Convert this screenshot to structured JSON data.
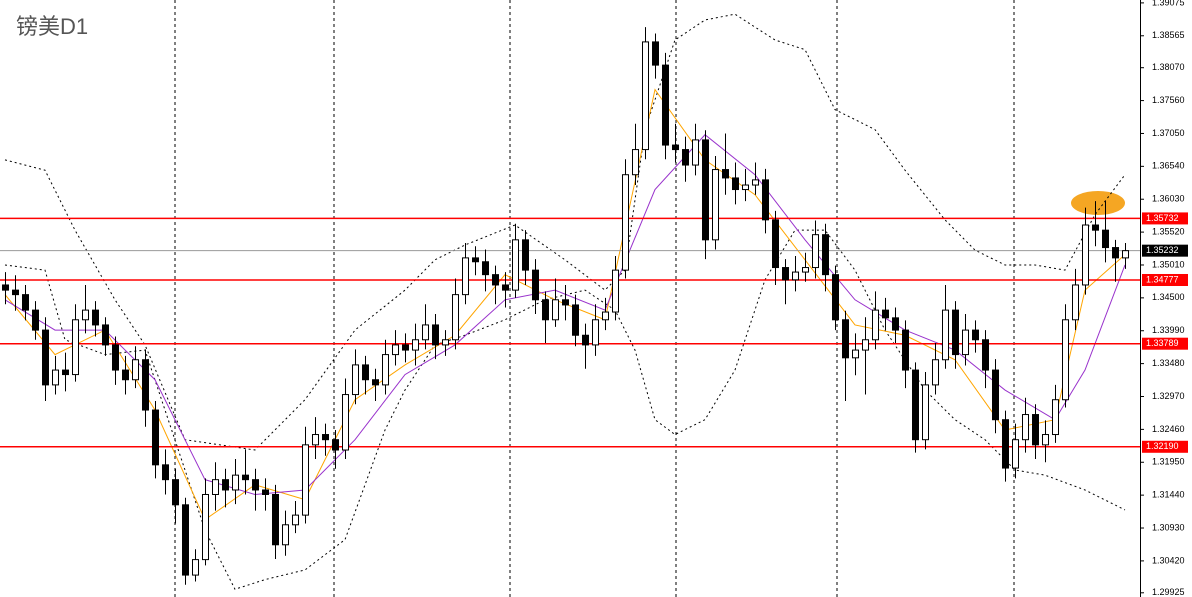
{
  "chart_data": {
    "type": "candlestick",
    "title": "镑美D1",
    "ohlc": [
      [
        1.347,
        1.349,
        1.344,
        1.3462
      ],
      [
        1.3462,
        1.3485,
        1.343,
        1.3455
      ],
      [
        1.3455,
        1.347,
        1.3415,
        1.3431
      ],
      [
        1.3431,
        1.3445,
        1.3385,
        1.34
      ],
      [
        1.34,
        1.342,
        1.329,
        1.3315
      ],
      [
        1.3315,
        1.336,
        1.33,
        1.3338
      ],
      [
        1.3338,
        1.3365,
        1.3305,
        1.3331
      ],
      [
        1.3331,
        1.344,
        1.332,
        1.3416
      ],
      [
        1.3416,
        1.347,
        1.3395,
        1.3431
      ],
      [
        1.3431,
        1.3445,
        1.339,
        1.3408
      ],
      [
        1.3408,
        1.342,
        1.336,
        1.3377
      ],
      [
        1.3377,
        1.339,
        1.3315,
        1.3338
      ],
      [
        1.3338,
        1.336,
        1.33,
        1.3323
      ],
      [
        1.3323,
        1.3375,
        1.331,
        1.3354
      ],
      [
        1.3354,
        1.337,
        1.325,
        1.3276
      ],
      [
        1.3276,
        1.329,
        1.317,
        1.3191
      ],
      [
        1.3191,
        1.3215,
        1.3145,
        1.3168
      ],
      [
        1.3168,
        1.3185,
        1.31,
        1.3129
      ],
      [
        1.3129,
        1.314,
        1.3005,
        1.302
      ],
      [
        1.302,
        1.306,
        1.301,
        1.3044
      ],
      [
        1.3044,
        1.317,
        1.3035,
        1.3145
      ],
      [
        1.3145,
        1.3195,
        1.312,
        1.3168
      ],
      [
        1.3168,
        1.3185,
        1.3125,
        1.3152
      ],
      [
        1.3152,
        1.32,
        1.313,
        1.3175
      ],
      [
        1.3175,
        1.3215,
        1.3145,
        1.3168
      ],
      [
        1.3168,
        1.3185,
        1.312,
        1.3152
      ],
      [
        1.3152,
        1.317,
        1.312,
        1.3145
      ],
      [
        1.3145,
        1.316,
        1.3045,
        1.3067
      ],
      [
        1.3067,
        1.312,
        1.305,
        1.3098
      ],
      [
        1.3098,
        1.3135,
        1.3085,
        1.3113
      ],
      [
        1.3113,
        1.325,
        1.31,
        1.3222
      ],
      [
        1.3222,
        1.3265,
        1.32,
        1.3238
      ],
      [
        1.3238,
        1.3255,
        1.3205,
        1.323
      ],
      [
        1.323,
        1.3245,
        1.3185,
        1.3214
      ],
      [
        1.3214,
        1.3325,
        1.32,
        1.33
      ],
      [
        1.33,
        1.337,
        1.3285,
        1.3346
      ],
      [
        1.3346,
        1.336,
        1.33,
        1.3323
      ],
      [
        1.3323,
        1.334,
        1.329,
        1.3315
      ],
      [
        1.3315,
        1.3385,
        1.33,
        1.3362
      ],
      [
        1.3362,
        1.34,
        1.3345,
        1.3377
      ],
      [
        1.3377,
        1.3395,
        1.335,
        1.3369
      ],
      [
        1.3369,
        1.341,
        1.3345,
        1.3385
      ],
      [
        1.3385,
        1.344,
        1.337,
        1.3408
      ],
      [
        1.3408,
        1.3425,
        1.3355,
        1.3377
      ],
      [
        1.3377,
        1.34,
        1.336,
        1.3385
      ],
      [
        1.3385,
        1.348,
        1.337,
        1.3455
      ],
      [
        1.3455,
        1.3535,
        1.344,
        1.3512
      ],
      [
        1.3512,
        1.353,
        1.3485,
        1.3506
      ],
      [
        1.3506,
        1.3525,
        1.346,
        1.3486
      ],
      [
        1.3486,
        1.35,
        1.344,
        1.347
      ],
      [
        1.347,
        1.349,
        1.3435,
        1.3462
      ],
      [
        1.3462,
        1.3565,
        1.345,
        1.354
      ],
      [
        1.354,
        1.3555,
        1.347,
        1.3493
      ],
      [
        1.3493,
        1.351,
        1.3425,
        1.3447
      ],
      [
        1.3447,
        1.346,
        1.338,
        1.3416
      ],
      [
        1.3416,
        1.348,
        1.3405,
        1.3447
      ],
      [
        1.3447,
        1.347,
        1.3415,
        1.3439
      ],
      [
        1.3439,
        1.3455,
        1.3375,
        1.3392
      ],
      [
        1.3392,
        1.341,
        1.334,
        1.3377
      ],
      [
        1.3377,
        1.344,
        1.336,
        1.3416
      ],
      [
        1.3416,
        1.345,
        1.34,
        1.3428
      ],
      [
        1.3428,
        1.3515,
        1.3415,
        1.3493
      ],
      [
        1.3493,
        1.3665,
        1.348,
        1.3641
      ],
      [
        1.3641,
        1.372,
        1.3625,
        1.368
      ],
      [
        1.368,
        1.387,
        1.3665,
        1.3847
      ],
      [
        1.3847,
        1.386,
        1.379,
        1.3811
      ],
      [
        1.3811,
        1.383,
        1.3665,
        1.3687
      ],
      [
        1.3687,
        1.372,
        1.366,
        1.368
      ],
      [
        1.368,
        1.37,
        1.363,
        1.3656
      ],
      [
        1.3656,
        1.372,
        1.364,
        1.3695
      ],
      [
        1.3695,
        1.371,
        1.351,
        1.354
      ],
      [
        1.354,
        1.367,
        1.3525,
        1.3649
      ],
      [
        1.3649,
        1.3705,
        1.361,
        1.3636
      ],
      [
        1.3636,
        1.366,
        1.3595,
        1.3618
      ],
      [
        1.3618,
        1.365,
        1.36,
        1.3625
      ],
      [
        1.3625,
        1.366,
        1.361,
        1.3633
      ],
      [
        1.3633,
        1.365,
        1.355,
        1.3571
      ],
      [
        1.3571,
        1.3585,
        1.347,
        1.3497
      ],
      [
        1.3497,
        1.351,
        1.344,
        1.3478
      ],
      [
        1.3478,
        1.3515,
        1.346,
        1.349
      ],
      [
        1.349,
        1.352,
        1.3475,
        1.3497
      ],
      [
        1.3497,
        1.357,
        1.348,
        1.3548
      ],
      [
        1.3548,
        1.3565,
        1.346,
        1.3486
      ],
      [
        1.3486,
        1.35,
        1.34,
        1.3416
      ],
      [
        1.3416,
        1.343,
        1.329,
        1.3357
      ],
      [
        1.3357,
        1.3395,
        1.333,
        1.3369
      ],
      [
        1.3369,
        1.342,
        1.33,
        1.3385
      ],
      [
        1.3385,
        1.346,
        1.337,
        1.3431
      ],
      [
        1.3431,
        1.345,
        1.34,
        1.3419
      ],
      [
        1.3419,
        1.3435,
        1.338,
        1.34
      ],
      [
        1.34,
        1.3415,
        1.331,
        1.3338
      ],
      [
        1.3338,
        1.335,
        1.321,
        1.323
      ],
      [
        1.323,
        1.3335,
        1.3215,
        1.3315
      ],
      [
        1.3315,
        1.338,
        1.33,
        1.3354
      ],
      [
        1.3354,
        1.347,
        1.334,
        1.3431
      ],
      [
        1.3431,
        1.3445,
        1.334,
        1.3362
      ],
      [
        1.3362,
        1.3425,
        1.3345,
        1.34
      ],
      [
        1.34,
        1.3415,
        1.3365,
        1.3385
      ],
      [
        1.3385,
        1.34,
        1.331,
        1.3338
      ],
      [
        1.3338,
        1.3355,
        1.324,
        1.3261
      ],
      [
        1.3261,
        1.3275,
        1.3165,
        1.3186
      ],
      [
        1.3186,
        1.3255,
        1.317,
        1.323
      ],
      [
        1.323,
        1.3295,
        1.321,
        1.3269
      ],
      [
        1.3269,
        1.3285,
        1.32,
        1.3222
      ],
      [
        1.3222,
        1.326,
        1.3195,
        1.3238
      ],
      [
        1.3238,
        1.3315,
        1.3225,
        1.3292
      ],
      [
        1.3292,
        1.344,
        1.328,
        1.3416
      ],
      [
        1.3416,
        1.3495,
        1.34,
        1.347
      ],
      [
        1.347,
        1.359,
        1.3455,
        1.3563
      ],
      [
        1.3563,
        1.36,
        1.353,
        1.3555
      ],
      [
        1.3555,
        1.36,
        1.3505,
        1.3528
      ],
      [
        1.3528,
        1.354,
        1.3475,
        1.3512
      ],
      [
        1.3512,
        1.3535,
        1.3495,
        1.35232
      ]
    ],
    "up_color": "#ffffff",
    "down_color": "#000000",
    "ylim": [
      1.2986,
      1.3912
    ],
    "yticks": [
      1.39075,
      1.38565,
      {
        "value": 1.3807,
        "label": "1.38070"
      },
      {
        "value": 1.3756,
        "label": "1.37560"
      },
      {
        "value": 1.3705,
        "label": "1.37050"
      },
      {
        "value": 1.3654,
        "label": "1.36540"
      },
      {
        "value": 1.3603,
        "label": "1.36030"
      },
      {
        "value": 1.3552,
        "label": "1.35520"
      },
      {
        "value": 1.3501,
        "label": "1.35010"
      },
      {
        "value": 1.345,
        "label": "1.34500"
      },
      {
        "value": 1.3399,
        "label": "1.33990"
      },
      {
        "value": 1.3348,
        "label": "1.33480"
      },
      {
        "value": 1.3297,
        "label": "1.32970"
      },
      {
        "value": 1.3246,
        "label": "1.32460"
      },
      {
        "value": 1.3195,
        "label": "1.31950"
      },
      {
        "value": 1.3144,
        "label": "1.31440"
      },
      {
        "value": 1.3093,
        "label": "1.30930"
      },
      {
        "value": 1.3042,
        "label": "1.30420"
      },
      1.29925
    ],
    "lines": [
      {
        "style": "dotted",
        "color": "#000000",
        "x": [
          0,
          4,
          7,
          11,
          14,
          18,
          25,
          30,
          35,
          40,
          43,
          46,
          51,
          56,
          60,
          62,
          64,
          67,
          70,
          73,
          77,
          80,
          83,
          87,
          90,
          94,
          97,
          100,
          103,
          106,
          109,
          112
        ],
        "values": [
          1.3664,
          1.3648,
          1.3555,
          1.3447,
          1.3377,
          1.323,
          1.3214,
          1.3292,
          1.34,
          1.3462,
          1.3509,
          1.3532,
          1.3563,
          1.3509,
          1.3462,
          1.3493,
          1.3711,
          1.385,
          1.3881,
          1.389,
          1.385,
          1.3835,
          1.3742,
          1.3711,
          1.3648,
          1.3571,
          1.3524,
          1.3501,
          1.3501,
          1.3493,
          1.3579,
          1.3641
        ]
      },
      {
        "style": "dotted",
        "color": "#000000",
        "x": [
          0,
          4,
          6,
          10,
          14,
          18,
          20,
          23,
          26,
          30,
          34,
          38,
          40,
          43,
          46,
          50,
          54,
          58,
          61,
          63,
          65,
          67,
          70,
          73,
          76,
          79,
          82,
          85,
          88,
          92,
          95,
          98,
          101,
          104,
          108,
          112
        ],
        "values": [
          1.3501,
          1.3493,
          1.3385,
          1.3362,
          1.3369,
          1.3183,
          1.309,
          1.2998,
          1.3013,
          1.3028,
          1.3075,
          1.3245,
          1.3307,
          1.3377,
          1.3392,
          1.3416,
          1.3447,
          1.3462,
          1.3431,
          1.3369,
          1.3261,
          1.3238,
          1.3261,
          1.3338,
          1.3478,
          1.3555,
          1.3555,
          1.3493,
          1.34,
          1.3307,
          1.3261,
          1.323,
          1.3183,
          1.3175,
          1.3152,
          1.3121
        ]
      },
      {
        "style": "solid",
        "color": "#ffa500",
        "x": [
          0,
          5,
          10,
          15,
          20,
          25,
          30,
          35,
          40,
          45,
          50,
          55,
          60,
          65,
          70,
          75,
          80,
          85,
          90,
          95,
          100,
          105,
          108,
          112
        ],
        "values": [
          1.3455,
          1.3362,
          1.34,
          1.3276,
          1.3106,
          1.316,
          1.3137,
          1.3292,
          1.3346,
          1.3392,
          1.3486,
          1.3447,
          1.3416,
          1.3773,
          1.3664,
          1.361,
          1.3509,
          1.3408,
          1.3392,
          1.3354,
          1.3245,
          1.3261,
          1.3462,
          1.3517
        ]
      },
      {
        "style": "solid",
        "color": "#9932cc",
        "x": [
          0,
          5,
          10,
          15,
          20,
          25,
          30,
          35,
          40,
          45,
          50,
          55,
          60,
          65,
          70,
          75,
          80,
          85,
          90,
          95,
          100,
          105,
          108,
          112
        ],
        "values": [
          1.3447,
          1.34,
          1.34,
          1.3323,
          1.3168,
          1.3145,
          1.3152,
          1.323,
          1.3331,
          1.3377,
          1.3447,
          1.3462,
          1.3431,
          1.3618,
          1.3703,
          1.3641,
          1.354,
          1.3447,
          1.34,
          1.3369,
          1.3307,
          1.3261,
          1.3338,
          1.3501
        ]
      }
    ],
    "levels": [
      1.35732,
      1.34777,
      1.33789,
      {
        "value": 1.3219,
        "label": "1.32190"
      }
    ],
    "level_color": "#ff0000",
    "current_price": 1.35232,
    "current_color": "#000000"
  }
}
